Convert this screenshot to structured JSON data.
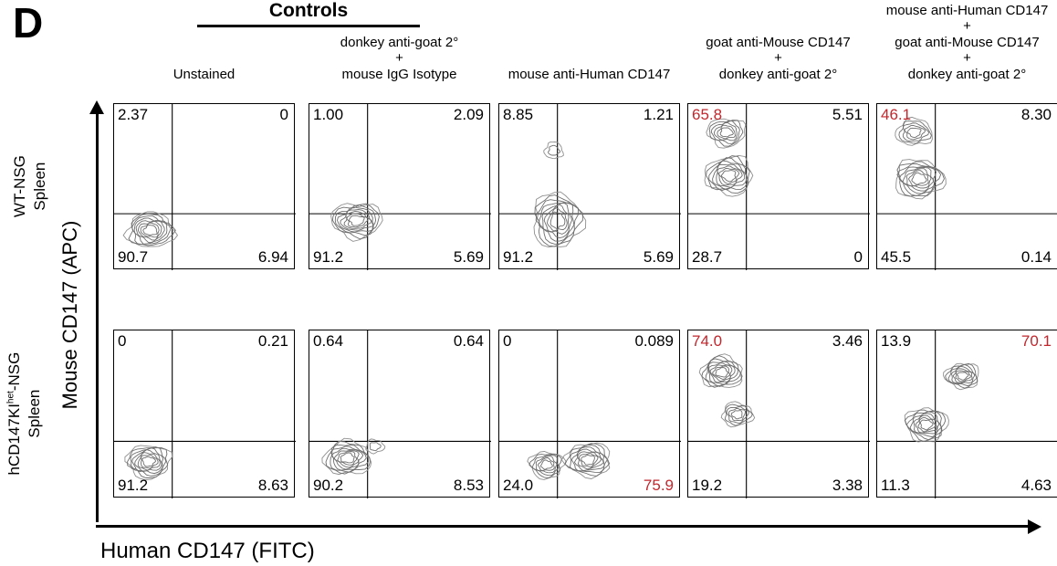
{
  "panel_label": "D",
  "controls_header": "Controls",
  "axes": {
    "y_label": "Mouse CD147 (APC)",
    "x_label": "Human CD147 (FITC)"
  },
  "colors": {
    "highlight_red": "#c1272d",
    "contour_gray": "#6e6e6e",
    "axis_black": "#000000"
  },
  "columns": [
    {
      "header_lines": [
        "Unstained"
      ]
    },
    {
      "header_lines": [
        "donkey anti-goat 2°",
        "+",
        "mouse IgG Isotype"
      ]
    },
    {
      "header_lines": [
        "mouse anti-Human CD147"
      ]
    },
    {
      "header_lines": [
        "goat anti-Mouse CD147",
        "+",
        "donkey anti-goat 2°"
      ]
    },
    {
      "header_lines": [
        "mouse anti-Human CD147",
        "+",
        "goat anti-Mouse CD147",
        "+",
        "donkey anti-goat 2°"
      ]
    }
  ],
  "rows": [
    {
      "label_lines": [
        [
          {
            "t": "WT-NSG"
          }
        ],
        [
          {
            "t": "Spleen"
          }
        ]
      ]
    },
    {
      "label_lines": [
        [
          {
            "t": "hCD147KI"
          },
          {
            "t": "het",
            "sup": true
          },
          {
            "t": "-NSG"
          }
        ],
        [
          {
            "t": "Spleen"
          }
        ]
      ]
    }
  ],
  "plots": [
    {
      "row": "WT-NSG",
      "column": "Unstained",
      "ul": "2.37",
      "ur": "0",
      "ll": "90.7",
      "lr": "6.94",
      "red": [],
      "populations": [
        [
          0.2,
          0.76,
          0.13,
          0.105,
          8
        ]
      ]
    },
    {
      "row": "WT-NSG",
      "column": "donkey anti-goat 2° + mouse IgG Isotype",
      "ul": "1.00",
      "ur": "2.09",
      "ll": "91.2",
      "lr": "5.69",
      "red": [],
      "populations": [
        [
          0.26,
          0.7,
          0.14,
          0.105,
          8
        ]
      ]
    },
    {
      "row": "WT-NSG",
      "column": "mouse anti-Human CD147",
      "ul": "8.85",
      "ur": "1.21",
      "ll": "91.2",
      "lr": "5.69",
      "red": [],
      "populations": [
        [
          0.3,
          0.28,
          0.05,
          0.05,
          2
        ],
        [
          0.32,
          0.7,
          0.135,
          0.165,
          8
        ]
      ]
    },
    {
      "row": "WT-NSG",
      "column": "goat anti-Mouse CD147 + donkey anti-goat 2°",
      "ul": "65.8",
      "ur": "5.51",
      "ll": "28.7",
      "lr": "0",
      "red": [
        "ul"
      ],
      "populations": [
        [
          0.21,
          0.17,
          0.105,
          0.085,
          6
        ],
        [
          0.225,
          0.43,
          0.13,
          0.115,
          8
        ]
      ]
    },
    {
      "row": "WT-NSG",
      "column": "mouse anti-Human CD147 + goat anti-Mouse CD147 + donkey anti-goat 2°",
      "ul": "46.1",
      "ur": "8.30",
      "ll": "45.5",
      "lr": "0.14",
      "red": [
        "ul"
      ],
      "populations": [
        [
          0.205,
          0.17,
          0.1,
          0.08,
          5
        ],
        [
          0.23,
          0.45,
          0.135,
          0.115,
          8
        ]
      ]
    },
    {
      "row": "hCD147KIhet-NSG",
      "column": "Unstained",
      "ul": "0",
      "ur": "0.21",
      "ll": "91.2",
      "lr": "8.63",
      "red": [],
      "populations": [
        [
          0.19,
          0.78,
          0.12,
          0.1,
          8
        ]
      ]
    },
    {
      "row": "hCD147KIhet-NSG",
      "column": "donkey anti-goat 2° + mouse IgG Isotype",
      "ul": "0.64",
      "ur": "0.64",
      "ll": "90.2",
      "lr": "8.53",
      "red": [],
      "populations": [
        [
          0.21,
          0.76,
          0.13,
          0.1,
          8
        ],
        [
          0.36,
          0.69,
          0.05,
          0.04,
          2
        ]
      ]
    },
    {
      "row": "hCD147KIhet-NSG",
      "column": "mouse anti-Human CD147",
      "ul": "0",
      "ur": "0.089",
      "ll": "24.0",
      "lr": "75.9",
      "red": [
        "lr"
      ],
      "populations": [
        [
          0.26,
          0.8,
          0.095,
          0.08,
          6
        ],
        [
          0.49,
          0.77,
          0.125,
          0.1,
          8
        ]
      ]
    },
    {
      "row": "hCD147KIhet-NSG",
      "column": "goat anti-Mouse CD147 + donkey anti-goat 2°",
      "ul": "74.0",
      "ur": "3.46",
      "ll": "19.2",
      "lr": "3.38",
      "red": [
        "ul"
      ],
      "populations": [
        [
          0.185,
          0.25,
          0.115,
          0.095,
          8
        ],
        [
          0.27,
          0.5,
          0.085,
          0.07,
          5
        ]
      ]
    },
    {
      "row": "hCD147KIhet-NSG",
      "column": "mouse anti-Human CD147 + goat anti-Mouse CD147 + donkey anti-goat 2°",
      "ul": "13.9",
      "ur": "70.1",
      "ll": "11.3",
      "lr": "4.63",
      "red": [
        "ur"
      ],
      "populations": [
        [
          0.27,
          0.56,
          0.115,
          0.1,
          8
        ],
        [
          0.47,
          0.27,
          0.095,
          0.075,
          7
        ]
      ]
    }
  ]
}
